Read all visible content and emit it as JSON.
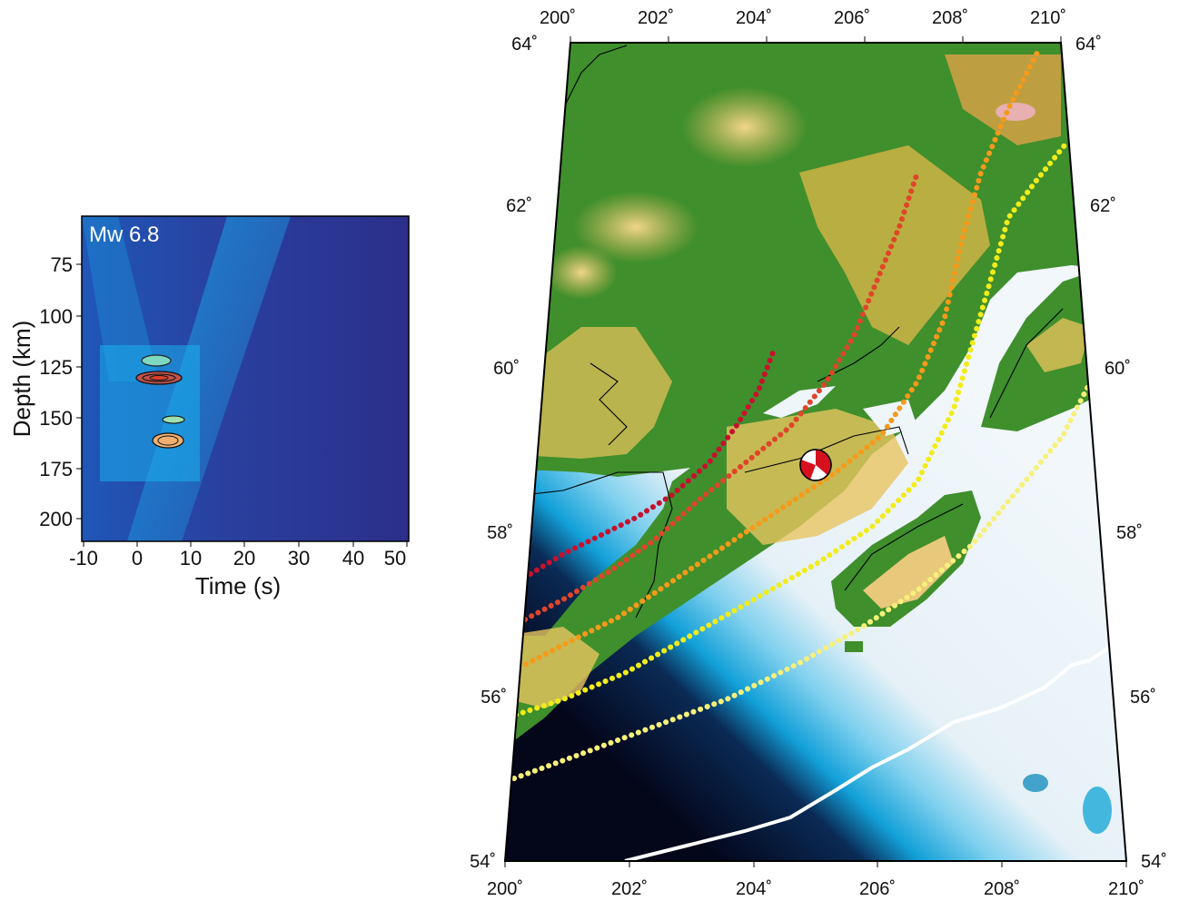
{
  "inset": {
    "label": "Mw 6.8",
    "ylabel": "Depth (km)",
    "xlabel": "Time (s)",
    "yticks": [
      "75",
      "100",
      "125",
      "150",
      "175",
      "200"
    ],
    "xticks": [
      "-10",
      "0",
      "10",
      "20",
      "30",
      "40",
      "50"
    ],
    "colors": {
      "deep": "#2a2f8f",
      "mid": "#1e63c6",
      "bright": "#18b3f0"
    }
  },
  "map": {
    "top_lon_ticks": [
      "200˚",
      "202˚",
      "204˚",
      "206˚",
      "208˚",
      "210˚"
    ],
    "bottom_lon_ticks": [
      "200˚",
      "202˚",
      "204˚",
      "206˚",
      "208˚",
      "210˚"
    ],
    "left_lat_ticks": [
      "64˚",
      "62˚",
      "60˚",
      "58˚",
      "56˚",
      "54˚"
    ],
    "right_lat_ticks": [
      "64˚",
      "62˚",
      "60˚",
      "58˚",
      "56˚",
      "54˚"
    ],
    "colors": {
      "land_green": "#3c8f2a",
      "land_yellow": "#e3c05a",
      "ocean_light": "#eef6fa",
      "ocean_blue": "#14a3d6",
      "ocean_dark": "#05081c",
      "contour_red": "#c8102e",
      "contour_orange_red": "#e0452a",
      "contour_orange": "#f59a1a",
      "contour_yellow": "#f2ec1a",
      "contour_pale_yellow": "#f7f07a",
      "beachball": "#d6101e"
    },
    "icons": [
      "beachball-icon"
    ]
  }
}
